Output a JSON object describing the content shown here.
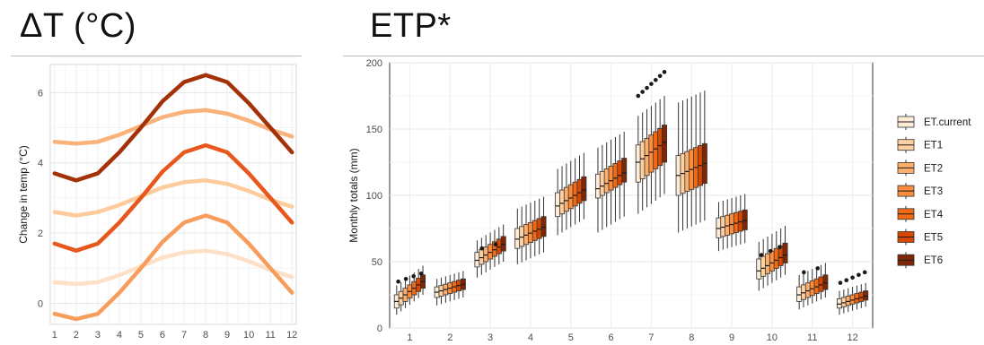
{
  "headings": {
    "left": "ΔT (°C)",
    "right": "ETP*"
  },
  "chart_data": [
    {
      "type": "line",
      "title": "ΔT (°C)",
      "ylabel": "Change in temp (°C)",
      "xlabel": "",
      "x": [
        1,
        2,
        3,
        4,
        5,
        6,
        7,
        8,
        9,
        10,
        11,
        12
      ],
      "x_ticks": [
        "1",
        "2",
        "3",
        "4",
        "5",
        "6",
        "7",
        "8",
        "9",
        "10",
        "11",
        "12"
      ],
      "y_ticks": [
        "0",
        "2",
        "4",
        "6"
      ],
      "xlim": [
        0.8,
        12.2
      ],
      "ylim": [
        -0.6,
        6.8
      ],
      "grid": true,
      "series": [
        {
          "color": "#fde0c5",
          "values": [
            0.6,
            0.55,
            0.6,
            0.8,
            1.05,
            1.3,
            1.45,
            1.5,
            1.4,
            1.2,
            0.95,
            0.75
          ]
        },
        {
          "color": "#f89c5c",
          "values": [
            -0.3,
            -0.45,
            -0.3,
            0.3,
            1.0,
            1.75,
            2.3,
            2.5,
            2.3,
            1.7,
            1.0,
            0.3
          ]
        },
        {
          "color": "#fdcb9c",
          "values": [
            2.6,
            2.5,
            2.6,
            2.8,
            3.05,
            3.3,
            3.45,
            3.5,
            3.4,
            3.2,
            2.95,
            2.75
          ]
        },
        {
          "color": "#e8571c",
          "values": [
            1.7,
            1.5,
            1.7,
            2.3,
            3.0,
            3.75,
            4.3,
            4.5,
            4.3,
            3.7,
            3.0,
            2.3
          ]
        },
        {
          "color": "#f9b27a",
          "values": [
            4.6,
            4.55,
            4.6,
            4.8,
            5.05,
            5.3,
            5.45,
            5.5,
            5.4,
            5.2,
            4.95,
            4.75
          ]
        },
        {
          "color": "#a33208",
          "values": [
            3.7,
            3.5,
            3.7,
            4.3,
            5.0,
            5.75,
            6.3,
            6.5,
            6.3,
            5.7,
            5.0,
            4.3
          ]
        }
      ]
    },
    {
      "type": "box",
      "title": "ETP*",
      "ylabel": "Monthly totals (mm)",
      "xlabel": "",
      "categories": [
        "1",
        "2",
        "3",
        "4",
        "5",
        "6",
        "7",
        "8",
        "9",
        "10",
        "11",
        "12"
      ],
      "y_ticks": [
        "0",
        "50",
        "100",
        "150",
        "200"
      ],
      "ylim": [
        0,
        200
      ],
      "grid": true,
      "legend_position": "right",
      "series": [
        {
          "name": "ET.current",
          "color": "#feebd8"
        },
        {
          "name": "ET1",
          "color": "#fdd0a2"
        },
        {
          "name": "ET2",
          "color": "#fdae6b"
        },
        {
          "name": "ET3",
          "color": "#fd8d3c"
        },
        {
          "name": "ET4",
          "color": "#f16913"
        },
        {
          "name": "ET5",
          "color": "#d94801"
        },
        {
          "name": "ET6",
          "color": "#7f2704"
        }
      ],
      "months": [
        {
          "median": 20,
          "q1": 15,
          "q3": 25,
          "min": 10,
          "max": 32,
          "step": 2.5,
          "outliers": [
            35,
            37,
            39,
            41
          ]
        },
        {
          "median": 27,
          "q1": 23,
          "q3": 31,
          "min": 17,
          "max": 37,
          "step": 1,
          "outliers": []
        },
        {
          "median": 51,
          "q1": 46,
          "q3": 57,
          "min": 38,
          "max": 66,
          "step": 2,
          "outliers": [
            60,
            63
          ]
        },
        {
          "median": 67,
          "q1": 60,
          "q3": 75,
          "min": 48,
          "max": 90,
          "step": 1.5,
          "outliers": []
        },
        {
          "median": 92,
          "q1": 84,
          "q3": 102,
          "min": 70,
          "max": 120,
          "step": 2,
          "outliers": []
        },
        {
          "median": 105,
          "q1": 98,
          "q3": 116,
          "min": 72,
          "max": 136,
          "step": 2,
          "outliers": []
        },
        {
          "median": 125,
          "q1": 110,
          "q3": 138,
          "min": 86,
          "max": 160,
          "step": 2.5,
          "outliers": [
            175,
            178,
            181,
            184,
            187,
            190,
            193
          ]
        },
        {
          "median": 115,
          "q1": 100,
          "q3": 130,
          "min": 72,
          "max": 170,
          "step": 1.5,
          "outliers": []
        },
        {
          "median": 75,
          "q1": 68,
          "q3": 83,
          "min": 58,
          "max": 95,
          "step": 1,
          "outliers": []
        },
        {
          "median": 43,
          "q1": 37,
          "q3": 52,
          "min": 28,
          "max": 65,
          "step": 2,
          "outliers": [
            55,
            58,
            61
          ]
        },
        {
          "median": 25,
          "q1": 20,
          "q3": 31,
          "min": 14,
          "max": 40,
          "step": 1.5,
          "outliers": [
            42,
            45
          ]
        },
        {
          "median": 18,
          "q1": 15,
          "q3": 22,
          "min": 10,
          "max": 28,
          "step": 1,
          "outliers": [
            34,
            36,
            38,
            40,
            42
          ]
        }
      ]
    }
  ]
}
